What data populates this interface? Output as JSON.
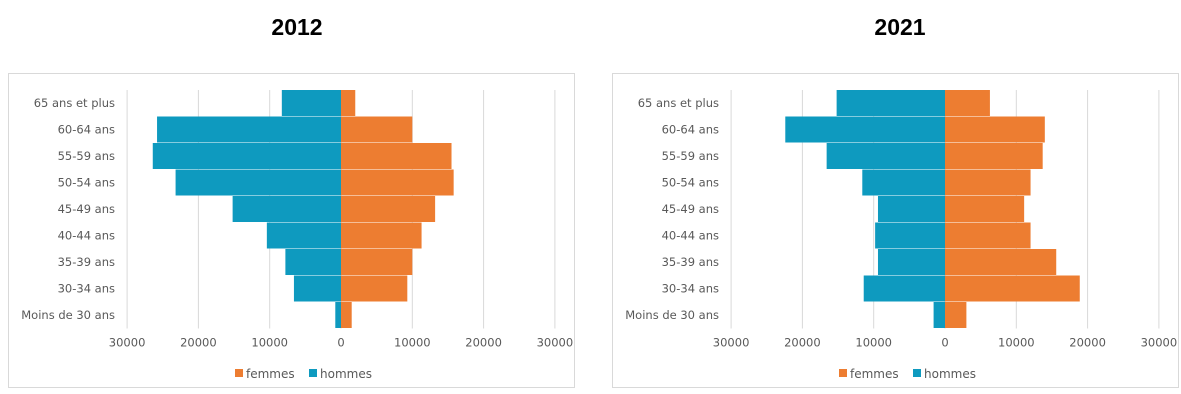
{
  "colors": {
    "femmes": "#ED7D31",
    "hommes": "#0E9ABF",
    "grid": "#d9d9d9"
  },
  "chart_data": [
    {
      "type": "bar",
      "orientation": "horizontal",
      "title": "2012",
      "categories": [
        "65 ans et plus",
        "60-64 ans",
        "55-59 ans",
        "50-54 ans",
        "45-49 ans",
        "40-44 ans",
        "35-39  ans",
        "30-34 ans",
        "Moins de 30 ans"
      ],
      "series": [
        {
          "name": "femmes",
          "values": [
            2000,
            10000,
            15500,
            15800,
            13200,
            11300,
            10000,
            9300,
            1500
          ]
        },
        {
          "name": "hommes",
          "values": [
            8300,
            25800,
            26400,
            23200,
            15200,
            10400,
            7800,
            6600,
            800
          ]
        }
      ],
      "xlim": [
        -30000,
        30000
      ],
      "xticks": [
        "30000",
        "20000",
        "10000",
        "0",
        "10000",
        "20000",
        "30000"
      ],
      "grid": true,
      "legend": "bottom"
    },
    {
      "type": "bar",
      "orientation": "horizontal",
      "title": "2021",
      "categories": [
        "65 ans et plus",
        "60-64 ans",
        "55-59 ans",
        "50-54 ans",
        "45-49 ans",
        "40-44 ans",
        "35-39  ans",
        "30-34 ans",
        "Moins de 30 ans"
      ],
      "series": [
        {
          "name": "femmes",
          "values": [
            6300,
            14000,
            13700,
            12000,
            11100,
            12000,
            15600,
            18900,
            3000
          ]
        },
        {
          "name": "hommes",
          "values": [
            15200,
            22400,
            16600,
            11600,
            9400,
            9800,
            9400,
            11400,
            1600
          ]
        }
      ],
      "xlim": [
        -30000,
        30000
      ],
      "xticks": [
        "30000",
        "20000",
        "10000",
        "0",
        "10000",
        "20000",
        "30000"
      ],
      "grid": true,
      "legend": "bottom"
    }
  ]
}
